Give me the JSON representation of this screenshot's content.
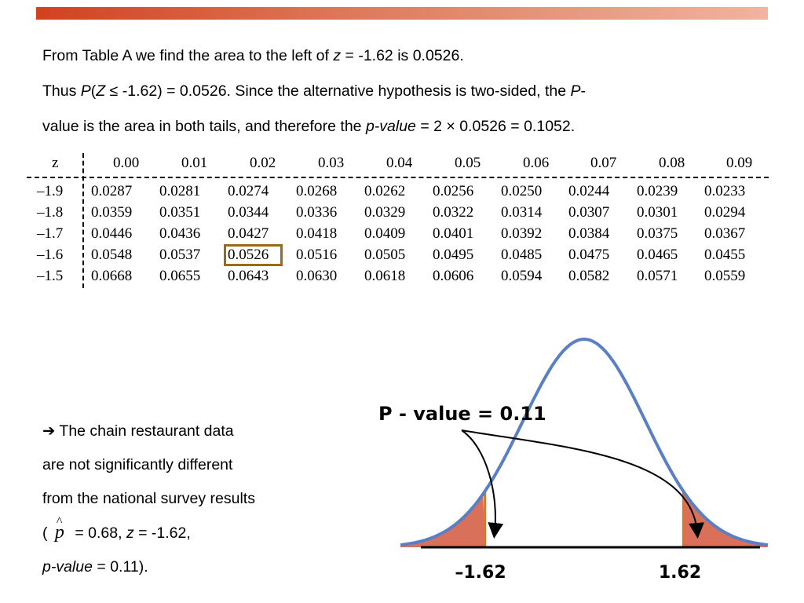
{
  "paragraph": {
    "line1_a": "From Table A we find the area to the left of ",
    "line1_z": "z",
    "line1_b": " = -1.62 is 0.0526.",
    "line2_a": "Thus ",
    "line2_P": "P",
    "line2_b": "(",
    "line2_Z": "Z",
    "line2_c": " ≤ -1.62) = 0.0526. Since the alternative hypothesis is two-sided, the ",
    "line2_P2": "P",
    "line2_d": "-",
    "line3_a": "value is the area in both tails, and therefore the ",
    "line3_pvalue": "p-value",
    "line3_b": " = 2 ",
    "line3_times": "×",
    "line3_c": " 0.0526 = 0.1052."
  },
  "table": {
    "corner": "z",
    "columns": [
      "0.00",
      "0.01",
      "0.02",
      "0.03",
      "0.04",
      "0.05",
      "0.06",
      "0.07",
      "0.08",
      "0.09"
    ],
    "rows": [
      {
        "z": "–1.9",
        "values": [
          "0.0287",
          "0.0281",
          "0.0274",
          "0.0268",
          "0.0262",
          "0.0256",
          "0.0250",
          "0.0244",
          "0.0239",
          "0.0233"
        ]
      },
      {
        "z": "–1.8",
        "values": [
          "0.0359",
          "0.0351",
          "0.0344",
          "0.0336",
          "0.0329",
          "0.0322",
          "0.0314",
          "0.0307",
          "0.0301",
          "0.0294"
        ]
      },
      {
        "z": "–1.7",
        "values": [
          "0.0446",
          "0.0436",
          "0.0427",
          "0.0418",
          "0.0409",
          "0.0401",
          "0.0392",
          "0.0384",
          "0.0375",
          "0.0367"
        ]
      },
      {
        "z": "–1.6",
        "values": [
          "0.0548",
          "0.0537",
          "0.0526",
          "0.0516",
          "0.0505",
          "0.0495",
          "0.0485",
          "0.0475",
          "0.0465",
          "0.0455"
        ]
      },
      {
        "z": "–1.5",
        "values": [
          "0.0668",
          "0.0655",
          "0.0643",
          "0.0630",
          "0.0618",
          "0.0606",
          "0.0594",
          "0.0582",
          "0.0571",
          "0.0559"
        ]
      }
    ]
  },
  "conclusion": {
    "arrow": "➔",
    "line1": " The chain restaurant data",
    "line2": "are not significantly different",
    "line3": "from the national survey results",
    "line4_open": "( ",
    "line4_p": "p",
    "line4_hat": "^",
    "line4_a": " = 0.68, ",
    "line4_z": "z",
    "line4_b": " = -1.62,",
    "line5_pvalue": "p-value",
    "line5_b": " = 0.11)."
  },
  "figure": {
    "pvalue_label": "P - value  = 0.11",
    "left_tick": "–1.62",
    "right_tick": "1.62",
    "curve_color": "#5b7fc4",
    "tail_color": "#d9705a",
    "tail_edge_color": "#e0722f"
  }
}
